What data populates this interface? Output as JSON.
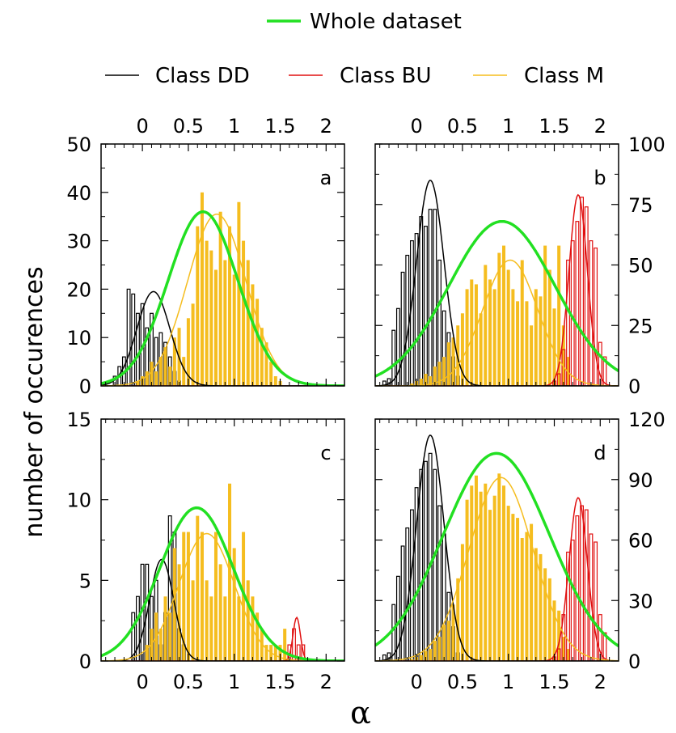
{
  "legend": {
    "top": {
      "label": "Whole dataset",
      "color": "#22e022"
    },
    "classes": [
      {
        "label": "Class DD",
        "color": "#000000"
      },
      {
        "label": "Class BU",
        "color": "#e01010"
      },
      {
        "label": "Class M",
        "color": "#f5bd1f"
      }
    ]
  },
  "ylabel": "number of occurences",
  "xlabel": "α",
  "chart_data": [
    {
      "panel": "a",
      "type": "bar",
      "xlim": [
        -0.45,
        2.2
      ],
      "ylim": [
        0,
        50
      ],
      "yaxis_side": "left",
      "xticks": [
        "0",
        "0.5",
        "1",
        "1.5",
        "2"
      ],
      "xtick_values": [
        0,
        0.5,
        1,
        1.5,
        2
      ],
      "yticks": [
        "0",
        "10",
        "20",
        "30",
        "40",
        "50"
      ],
      "ytick_values": [
        0,
        10,
        20,
        30,
        40,
        50
      ],
      "series": [
        {
          "name": "Class DD",
          "kind": "hist",
          "x": [
            -0.35,
            -0.3,
            -0.25,
            -0.2,
            -0.15,
            -0.1,
            -0.05,
            0,
            0.05,
            0.1,
            0.15,
            0.2,
            0.25,
            0.3,
            0.35,
            0.4
          ],
          "values": [
            0,
            2,
            4,
            6,
            20,
            19,
            15,
            17,
            12,
            15,
            10,
            11,
            9,
            6,
            3,
            1
          ]
        },
        {
          "name": "Class M",
          "kind": "bar",
          "x": [
            -0.05,
            0,
            0.05,
            0.1,
            0.15,
            0.2,
            0.25,
            0.3,
            0.35,
            0.4,
            0.45,
            0.5,
            0.55,
            0.6,
            0.65,
            0.7,
            0.75,
            0.8,
            0.85,
            0.9,
            0.95,
            1,
            1.05,
            1.1,
            1.15,
            1.2,
            1.25,
            1.3,
            1.35,
            1.4,
            1.45,
            1.5
          ],
          "values": [
            1,
            2,
            3,
            5,
            3,
            6,
            8,
            4,
            10,
            12,
            6,
            14,
            17,
            33,
            40,
            30,
            28,
            24,
            36,
            26,
            33,
            23,
            38,
            30,
            26,
            21,
            18,
            12,
            9,
            5,
            2,
            1
          ]
        },
        {
          "name": "Class BU",
          "kind": "curve",
          "peak": 0,
          "mu": 1.7,
          "sigma": 0.1
        },
        {
          "name": "Class DD",
          "kind": "curve",
          "peak": 19.5,
          "mu": 0.12,
          "sigma": 0.18
        },
        {
          "name": "Class M",
          "kind": "curve",
          "peak": 35.5,
          "mu": 0.81,
          "sigma": 0.32
        },
        {
          "name": "Whole dataset",
          "kind": "curve",
          "peak": 36,
          "mu": 0.66,
          "sigma": 0.38
        }
      ]
    },
    {
      "panel": "b",
      "type": "bar",
      "xlim": [
        -0.45,
        2.2
      ],
      "ylim": [
        0,
        100
      ],
      "yaxis_side": "right",
      "xticks": [
        "0",
        "0.5",
        "1",
        "1.5",
        "2"
      ],
      "xtick_values": [
        0,
        0.5,
        1,
        1.5,
        2
      ],
      "yticks": [
        "0",
        "25",
        "50",
        "75",
        "100"
      ],
      "ytick_values": [
        0,
        25,
        50,
        75,
        100
      ],
      "series": [
        {
          "name": "Class DD",
          "kind": "hist",
          "x": [
            -0.35,
            -0.3,
            -0.25,
            -0.2,
            -0.15,
            -0.1,
            -0.05,
            0,
            0.05,
            0.1,
            0.15,
            0.2,
            0.25,
            0.3,
            0.35,
            0.4,
            0.45
          ],
          "values": [
            2,
            3,
            23,
            32,
            47,
            54,
            60,
            63,
            70,
            66,
            73,
            73,
            52,
            31,
            22,
            12,
            4
          ]
        },
        {
          "name": "Class M",
          "kind": "bar",
          "x": [
            -0.05,
            0,
            0.05,
            0.1,
            0.15,
            0.2,
            0.25,
            0.3,
            0.35,
            0.4,
            0.45,
            0.5,
            0.55,
            0.6,
            0.65,
            0.7,
            0.75,
            0.8,
            0.85,
            0.9,
            0.95,
            1,
            1.05,
            1.1,
            1.15,
            1.2,
            1.25,
            1.3,
            1.35,
            1.4,
            1.45,
            1.5,
            1.55,
            1.6,
            1.65
          ],
          "values": [
            1,
            2,
            3,
            5,
            4,
            8,
            10,
            12,
            18,
            20,
            25,
            30,
            40,
            44,
            42,
            30,
            50,
            44,
            40,
            55,
            58,
            48,
            40,
            35,
            52,
            35,
            25,
            40,
            37,
            58,
            48,
            32,
            58,
            25,
            12
          ]
        },
        {
          "name": "Class BU",
          "kind": "hist",
          "x": [
            1.5,
            1.55,
            1.6,
            1.65,
            1.7,
            1.75,
            1.8,
            1.85,
            1.9,
            1.95,
            2,
            2.05
          ],
          "values": [
            2,
            5,
            15,
            52,
            60,
            68,
            78,
            74,
            60,
            57,
            18,
            12
          ]
        },
        {
          "name": "Class BU",
          "kind": "curve",
          "peak": 79,
          "mu": 1.76,
          "sigma": 0.1
        },
        {
          "name": "Class DD",
          "kind": "curve",
          "peak": 85,
          "mu": 0.15,
          "sigma": 0.15
        },
        {
          "name": "Class M",
          "kind": "curve",
          "peak": 52,
          "mu": 1.02,
          "sigma": 0.3
        },
        {
          "name": "Whole dataset",
          "kind": "curve",
          "peak": 68,
          "mu": 0.93,
          "sigma": 0.58
        }
      ]
    },
    {
      "panel": "c",
      "type": "bar",
      "xlim": [
        -0.45,
        2.2
      ],
      "ylim": [
        0,
        15
      ],
      "yaxis_side": "left",
      "xticks": [
        "0",
        "0.5",
        "1",
        "1.5",
        "2"
      ],
      "xtick_values": [
        0,
        0.5,
        1,
        1.5,
        2
      ],
      "yticks": [
        "0",
        "5",
        "10",
        "15"
      ],
      "ytick_values": [
        0,
        5,
        10,
        15
      ],
      "series": [
        {
          "name": "Class DD",
          "kind": "hist",
          "x": [
            -0.1,
            -0.05,
            0,
            0.05,
            0.1,
            0.15,
            0.2,
            0.25,
            0.3,
            0.35,
            0.4,
            0.45
          ],
          "values": [
            3,
            4,
            6,
            6,
            4,
            5,
            1,
            3,
            9,
            8,
            2,
            1
          ]
        },
        {
          "name": "Class BU",
          "kind": "hist",
          "x": [
            1.6,
            1.65,
            1.7,
            1.75
          ],
          "values": [
            1,
            2,
            1,
            1
          ]
        },
        {
          "name": "Class M",
          "kind": "bar",
          "x": [
            0.05,
            0.1,
            0.15,
            0.2,
            0.25,
            0.3,
            0.35,
            0.4,
            0.45,
            0.5,
            0.55,
            0.6,
            0.65,
            0.7,
            0.75,
            0.8,
            0.85,
            0.9,
            0.95,
            1,
            1.05,
            1.1,
            1.15,
            1.2,
            1.25,
            1.3,
            1.35,
            1.4,
            1.45,
            1.5,
            1.55
          ],
          "values": [
            1,
            2,
            3,
            2,
            4,
            3,
            7,
            6,
            8,
            8,
            5,
            9,
            8,
            5,
            4,
            8,
            6,
            4,
            11,
            7,
            4,
            8,
            5,
            4,
            3,
            2,
            1,
            1,
            1,
            1,
            2
          ]
        },
        {
          "name": "Class BU",
          "kind": "curve",
          "peak": 2.7,
          "mu": 1.68,
          "sigma": 0.04
        },
        {
          "name": "Class DD",
          "kind": "curve",
          "peak": 6.3,
          "mu": 0.21,
          "sigma": 0.13
        },
        {
          "name": "Class M",
          "kind": "curve",
          "peak": 7.9,
          "mu": 0.7,
          "sigma": 0.3
        },
        {
          "name": "Whole dataset",
          "kind": "curve",
          "peak": 9.5,
          "mu": 0.59,
          "sigma": 0.4
        }
      ]
    },
    {
      "panel": "d",
      "type": "bar",
      "xlim": [
        -0.45,
        2.2
      ],
      "ylim": [
        0,
        120
      ],
      "yaxis_side": "right",
      "xticks": [
        "0",
        "0.5",
        "1",
        "1.5",
        "2"
      ],
      "xtick_values": [
        0,
        0.5,
        1,
        1.5,
        2
      ],
      "yticks": [
        "0",
        "30",
        "60",
        "90",
        "120"
      ],
      "ytick_values": [
        0,
        30,
        60,
        90,
        120
      ],
      "series": [
        {
          "name": "Class DD",
          "kind": "hist",
          "x": [
            -0.35,
            -0.3,
            -0.25,
            -0.2,
            -0.15,
            -0.1,
            -0.05,
            0,
            0.05,
            0.1,
            0.15,
            0.2,
            0.25,
            0.3,
            0.35,
            0.4,
            0.45
          ],
          "values": [
            3,
            4,
            28,
            42,
            57,
            66,
            75,
            86,
            95,
            99,
            103,
            95,
            77,
            63,
            34,
            17,
            4
          ]
        },
        {
          "name": "Class M",
          "kind": "bar",
          "x": [
            -0.05,
            0,
            0.05,
            0.1,
            0.15,
            0.2,
            0.25,
            0.3,
            0.35,
            0.4,
            0.45,
            0.5,
            0.55,
            0.6,
            0.65,
            0.7,
            0.75,
            0.8,
            0.85,
            0.9,
            0.95,
            1,
            1.05,
            1.1,
            1.15,
            1.2,
            1.25,
            1.3,
            1.35,
            1.4,
            1.45,
            1.5,
            1.55,
            1.6,
            1.65
          ],
          "values": [
            1,
            2,
            3,
            5,
            6,
            10,
            12,
            18,
            20,
            28,
            41,
            58,
            80,
            87,
            92,
            84,
            88,
            75,
            82,
            93,
            87,
            77,
            73,
            71,
            61,
            64,
            68,
            56,
            53,
            46,
            41,
            30,
            25,
            12,
            6
          ]
        },
        {
          "name": "Class BU",
          "kind": "hist",
          "x": [
            1.5,
            1.55,
            1.6,
            1.65,
            1.7,
            1.75,
            1.8,
            1.85,
            1.9,
            1.95,
            2,
            2.05
          ],
          "values": [
            2,
            6,
            23,
            54,
            60,
            72,
            77,
            75,
            63,
            59,
            23,
            14
          ]
        },
        {
          "name": "Class BU",
          "kind": "curve",
          "peak": 81,
          "mu": 1.76,
          "sigma": 0.1
        },
        {
          "name": "Class DD",
          "kind": "curve",
          "peak": 112,
          "mu": 0.15,
          "sigma": 0.15
        },
        {
          "name": "Class M",
          "kind": "curve",
          "peak": 91,
          "mu": 0.92,
          "sigma": 0.35
        },
        {
          "name": "Whole dataset",
          "kind": "curve",
          "peak": 103,
          "mu": 0.87,
          "sigma": 0.58
        }
      ]
    }
  ]
}
